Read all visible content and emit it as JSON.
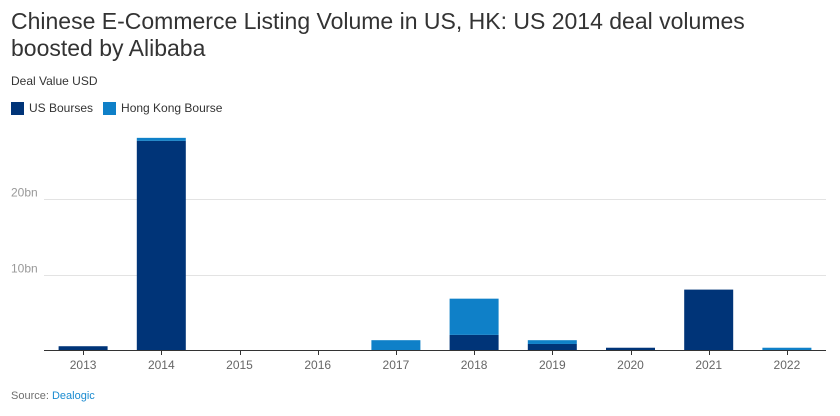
{
  "title": "Chinese E-Commerce Listing Volume in US, HK: US 2014 deal volumes boosted by Alibaba",
  "subtitle": "Deal Value USD",
  "source_label": "Source:",
  "source_name": "Dealogic",
  "colors": {
    "us": "#003478",
    "hk": "#0f80c8"
  },
  "chart_data": {
    "type": "bar",
    "stacked": true,
    "title": "Chinese E-Commerce Listing Volume in US, HK: US 2014 deal volumes boosted by Alibaba",
    "ylabel": "Deal Value USD",
    "categories": [
      "2013",
      "2014",
      "2015",
      "2016",
      "2017",
      "2018",
      "2019",
      "2020",
      "2021",
      "2022"
    ],
    "series": [
      {
        "name": "US Bourses",
        "values": [
          0.5,
          27.7,
          0,
          0,
          0,
          2.0,
          0.8,
          0.3,
          8.0,
          0
        ]
      },
      {
        "name": "Hong Kong Bourse",
        "values": [
          0,
          0.4,
          0,
          0,
          1.3,
          4.8,
          0.5,
          0,
          0,
          0.3
        ]
      }
    ],
    "yticks": [
      {
        "value": 10,
        "label": "10bn"
      },
      {
        "value": 20,
        "label": "20bn"
      }
    ],
    "ylim": [
      0,
      28
    ],
    "grid": true
  }
}
